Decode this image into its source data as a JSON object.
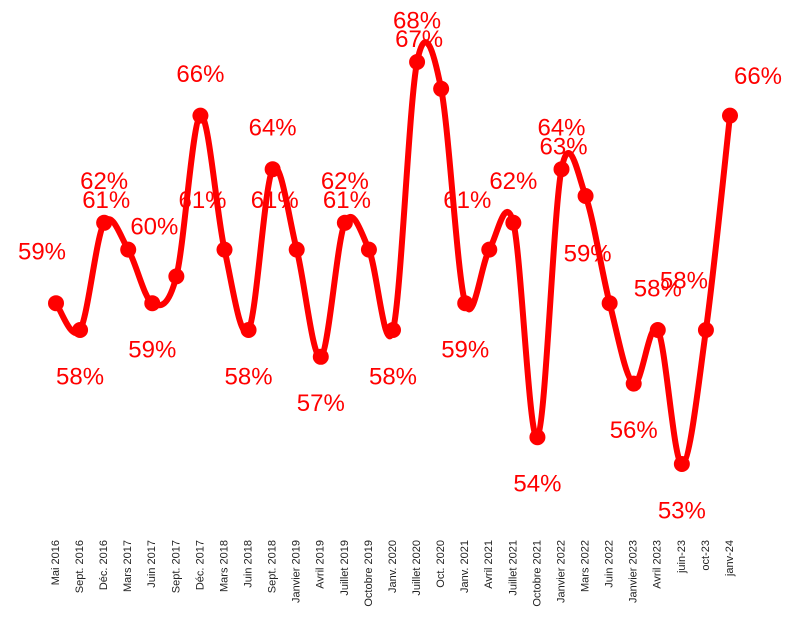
{
  "chart_data": {
    "type": "line",
    "categories": [
      "Mai 2016",
      "Sept. 2016",
      "Déc. 2016",
      "Mars 2017",
      "Juin 2017",
      "Sept. 2017",
      "Déc. 2017",
      "Mars 2018",
      "Juin 2018",
      "Sept. 2018",
      "Janvier 2019",
      "Avril 2019",
      "Juillet 2019",
      "Octobre 2019",
      "Janv. 2020",
      "Juillet 2020",
      "Oct. 2020",
      "Janv. 2021",
      "Avril 2021",
      "Juillet 2021",
      "Octobre 2021",
      "Janvier 2022",
      "Mars 2022",
      "Juin 2022",
      "Janvier 2023",
      "Avril 2023",
      "juin-23",
      "oct-23",
      "janv-24"
    ],
    "values": [
      59,
      58,
      62,
      61,
      59,
      60,
      66,
      61,
      58,
      64,
      61,
      57,
      62,
      61,
      58,
      68,
      67,
      59,
      61,
      62,
      54,
      64,
      63,
      59,
      56,
      58,
      53,
      58,
      66
    ],
    "value_labels": [
      "59%",
      "58%",
      "62%",
      "61%",
      "59%",
      "60%",
      "66%",
      "61%",
      "58%",
      "64%",
      "61%",
      "57%",
      "62%",
      "61%",
      "58%",
      "68%",
      "67%",
      "59%",
      "61%",
      "62%",
      "54%",
      "64%",
      "63%",
      "59%",
      "56%",
      "58%",
      "53%",
      "58%",
      "66%"
    ],
    "color": "#ff0000"
  }
}
